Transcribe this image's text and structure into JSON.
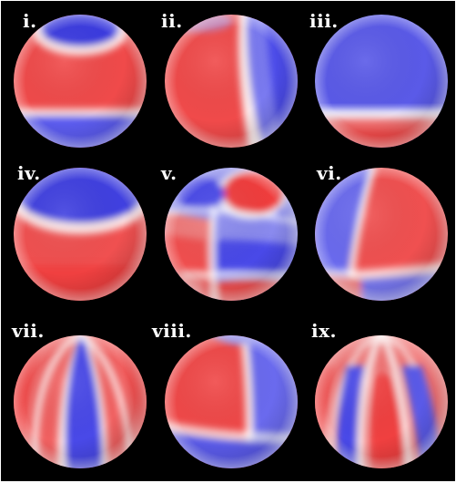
{
  "figure": {
    "colors": {
      "background": "#000000",
      "red": "#f03c3c",
      "blue": "#3c3ce8",
      "white": "#ffffff"
    },
    "panels": [
      {
        "label": "i."
      },
      {
        "label": "ii."
      },
      {
        "label": "iii."
      },
      {
        "label": "iv."
      },
      {
        "label": "v."
      },
      {
        "label": "vi."
      },
      {
        "label": "vii."
      },
      {
        "label": "viii."
      },
      {
        "label": "ix."
      }
    ]
  }
}
